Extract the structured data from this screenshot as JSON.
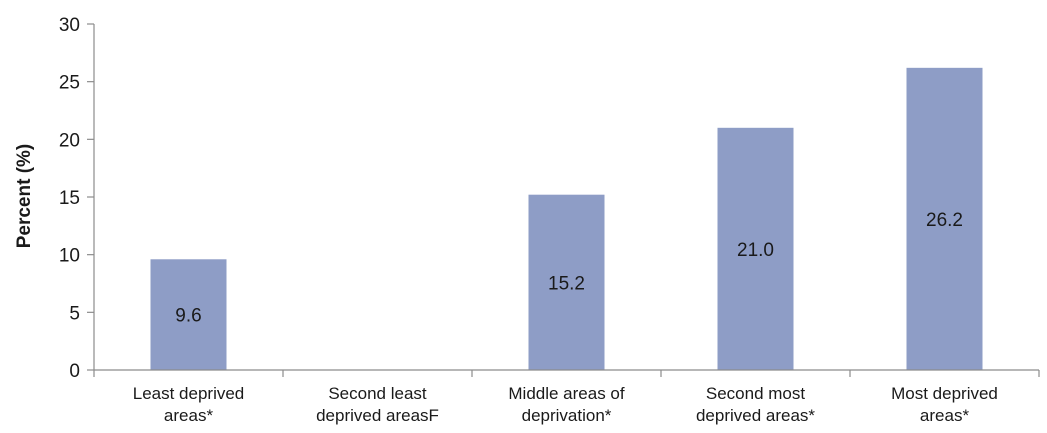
{
  "chart_data": {
    "type": "bar",
    "title": "",
    "xlabel": "",
    "ylabel": "Percent (%)",
    "ylim": [
      0,
      30
    ],
    "yticks": [
      0,
      5,
      10,
      15,
      20,
      25,
      30
    ],
    "grid": false,
    "legend": "none",
    "categories": [
      [
        "Least deprived",
        "areas*"
      ],
      [
        "Second least",
        "deprived areasF"
      ],
      [
        "Middle areas of",
        "deprivation*"
      ],
      [
        "Second most",
        "deprived areas*"
      ],
      [
        "Most deprived",
        "areas*"
      ]
    ],
    "values": [
      9.6,
      null,
      15.2,
      21.0,
      26.2
    ],
    "data_labels": [
      "9.6",
      "",
      "15.2",
      "21.0",
      "26.2"
    ],
    "bar_color": "#8e9dc6",
    "axis_color": "#8c8c8c"
  }
}
